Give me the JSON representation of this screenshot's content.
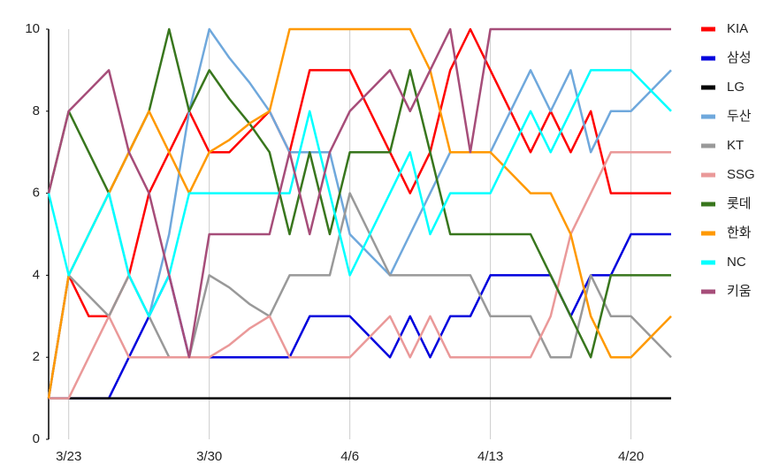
{
  "chart_data": {
    "type": "line",
    "categories": [
      null,
      "3/23",
      null,
      null,
      null,
      null,
      null,
      null,
      "3/30",
      null,
      null,
      null,
      null,
      null,
      null,
      "4/6",
      null,
      null,
      null,
      null,
      null,
      null,
      "4/13",
      null,
      null,
      null,
      null,
      null,
      null,
      "4/20",
      null,
      null
    ],
    "ylim": [
      0,
      10
    ],
    "yticks": [
      0,
      2,
      4,
      6,
      8,
      10
    ],
    "grid": true,
    "series": [
      {
        "name": "KIA",
        "color": "#ff0000",
        "values": [
          1,
          4,
          3,
          3,
          4,
          6,
          7,
          8,
          7,
          7,
          7.5,
          8,
          7,
          9,
          9,
          9,
          8,
          7,
          6,
          7,
          9,
          10,
          9,
          8,
          7,
          8,
          7,
          8,
          6,
          6,
          6,
          6
        ]
      },
      {
        "name": "삼성",
        "color": "#0000dd",
        "values": [
          1,
          1,
          1,
          1,
          2,
          3,
          4,
          2,
          2,
          2,
          2,
          2,
          2,
          3,
          3,
          3,
          2.5,
          2,
          3,
          2,
          3,
          3,
          4,
          4,
          4,
          4,
          3,
          4,
          4,
          5,
          5,
          5
        ]
      },
      {
        "name": "LG",
        "color": "#000000",
        "values": [
          1,
          1,
          1,
          1,
          1,
          1,
          1,
          1,
          1,
          1,
          1,
          1,
          1,
          1,
          1,
          1,
          1,
          1,
          1,
          1,
          1,
          1,
          1,
          1,
          1,
          1,
          1,
          1,
          1,
          1,
          1,
          1
        ]
      },
      {
        "name": "두산",
        "color": "#6fa8dc",
        "values": [
          1,
          4,
          5,
          6,
          4,
          3,
          5,
          8,
          10,
          9.3,
          8.7,
          8,
          7,
          7,
          7,
          5,
          4.5,
          4,
          5,
          6,
          7,
          7,
          7,
          8,
          9,
          8,
          9,
          7,
          8,
          8,
          8.5,
          9
        ]
      },
      {
        "name": "KT",
        "color": "#999999",
        "values": [
          1,
          4,
          3.5,
          3,
          4,
          3,
          2,
          2,
          4,
          3.7,
          3.3,
          3,
          4,
          4,
          4,
          6,
          5,
          4,
          4,
          4,
          4,
          4,
          3,
          3,
          3,
          2,
          2,
          4,
          3,
          3,
          2.5,
          2
        ]
      },
      {
        "name": "SSG",
        "color": "#ea9999",
        "values": [
          1,
          1,
          2,
          3,
          2,
          2,
          2,
          2,
          2,
          2.3,
          2.7,
          3,
          2,
          2,
          2,
          2,
          2.5,
          3,
          2,
          3,
          2,
          2,
          2,
          2,
          2,
          3,
          5,
          6,
          7,
          7,
          7,
          7
        ]
      },
      {
        "name": "롯데",
        "color": "#38761d",
        "values": [
          6,
          8,
          7,
          6,
          7,
          8,
          10,
          8,
          9,
          8.3,
          7.7,
          7,
          5,
          7,
          5,
          7,
          7,
          7,
          9,
          7,
          5,
          5,
          5,
          5,
          5,
          4,
          3,
          2,
          4,
          4,
          4,
          4
        ]
      },
      {
        "name": "한화",
        "color": "#ff9900",
        "values": [
          1,
          4,
          5,
          6,
          7,
          8,
          7,
          6,
          7,
          7.3,
          7.7,
          8,
          10,
          10,
          10,
          10,
          10,
          10,
          10,
          9,
          7,
          7,
          7,
          6.5,
          6,
          6,
          5,
          3,
          2,
          2,
          2.5,
          3
        ]
      },
      {
        "name": "NC",
        "color": "#00ffff",
        "values": [
          6,
          4,
          5,
          6,
          4,
          3,
          4,
          6,
          6,
          6,
          6,
          6,
          6,
          8,
          6,
          4,
          5,
          6,
          7,
          5,
          6,
          6,
          6,
          7,
          8,
          7,
          8,
          9,
          9,
          9,
          8.5,
          8
        ]
      },
      {
        "name": "키움",
        "color": "#a64d79",
        "values": [
          6,
          8,
          8.5,
          9,
          7,
          6,
          4,
          2,
          5,
          5,
          5,
          5,
          7,
          5,
          7,
          8,
          8.5,
          9,
          8,
          9,
          10,
          7,
          10,
          10,
          10,
          10,
          10,
          10,
          10,
          10,
          10,
          10
        ]
      }
    ]
  }
}
